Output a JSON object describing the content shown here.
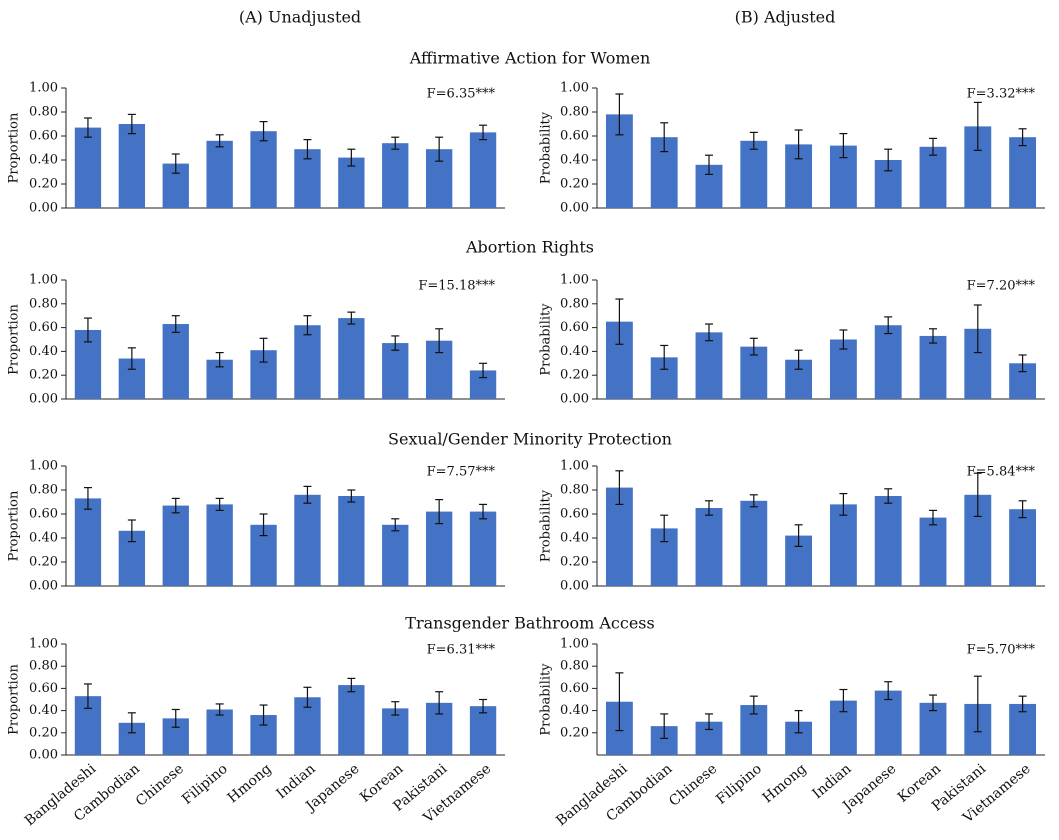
{
  "column_titles": [
    "(A) Unadjusted",
    "(B) Adjusted"
  ],
  "row_titles": [
    "Affirmative Action for Women",
    "Abortion Rights",
    "Sexual/Gender Minority Protection",
    "Transgender Bathroom Access"
  ],
  "chart_data": [
    {
      "type": "bar",
      "ylabel": "Proportion",
      "annotation": "F=6.35***",
      "color": "#4472c4",
      "categories": [
        null,
        null,
        null,
        null,
        null,
        null,
        null,
        null,
        null,
        null
      ],
      "values": [
        0.67,
        0.7,
        0.37,
        0.56,
        0.64,
        0.49,
        0.42,
        0.54,
        0.49,
        0.63
      ],
      "errors": [
        0.08,
        0.08,
        0.08,
        0.05,
        0.08,
        0.08,
        0.07,
        0.05,
        0.1,
        0.06
      ],
      "ylim": [
        0,
        1
      ],
      "yticks": [
        {
          "value": 0,
          "label": "0.00"
        },
        {
          "value": 0.2,
          "label": "0.20"
        },
        {
          "value": 0.4,
          "label": "0.40"
        },
        {
          "value": 0.6,
          "label": "0.60"
        },
        {
          "value": 0.8,
          "label": "0.80"
        },
        {
          "value": 1,
          "label": "1.00"
        }
      ]
    },
    {
      "type": "bar",
      "ylabel": "Probability",
      "annotation": "F=3.32***",
      "color": "#4472c4",
      "categories": [
        null,
        null,
        null,
        null,
        null,
        null,
        null,
        null,
        null,
        null
      ],
      "values": [
        0.78,
        0.59,
        0.36,
        0.56,
        0.53,
        0.52,
        0.4,
        0.51,
        0.68,
        0.59
      ],
      "errors": [
        0.17,
        0.12,
        0.08,
        0.07,
        0.12,
        0.1,
        0.09,
        0.07,
        0.2,
        0.07
      ],
      "ylim": [
        0,
        1
      ],
      "yticks": [
        {
          "value": 0,
          "label": "0.00"
        },
        {
          "value": 0.2,
          "label": "0.20"
        },
        {
          "value": 0.4,
          "label": "0.40"
        },
        {
          "value": 0.6,
          "label": "0.60"
        },
        {
          "value": 0.8,
          "label": "0.80"
        },
        {
          "value": 1,
          "label": "1.00"
        }
      ]
    },
    {
      "type": "bar",
      "ylabel": "Proportion",
      "annotation": "F=15.18***",
      "color": "#4472c4",
      "categories": [
        null,
        null,
        null,
        null,
        null,
        null,
        null,
        null,
        null,
        null
      ],
      "values": [
        0.58,
        0.34,
        0.63,
        0.33,
        0.41,
        0.62,
        0.68,
        0.47,
        0.49,
        0.24
      ],
      "errors": [
        0.1,
        0.09,
        0.07,
        0.06,
        0.1,
        0.08,
        0.05,
        0.06,
        0.1,
        0.06
      ],
      "ylim": [
        0,
        1
      ],
      "yticks": [
        {
          "value": 0,
          "label": "0.00"
        },
        {
          "value": 0.2,
          "label": "0.20"
        },
        {
          "value": 0.4,
          "label": "0.40"
        },
        {
          "value": 0.6,
          "label": "0.60"
        },
        {
          "value": 0.8,
          "label": "0.80"
        },
        {
          "value": 1,
          "label": "1.00"
        }
      ]
    },
    {
      "type": "bar",
      "ylabel": "Probability",
      "annotation": "F=7.20***",
      "color": "#4472c4",
      "categories": [
        null,
        null,
        null,
        null,
        null,
        null,
        null,
        null,
        null,
        null
      ],
      "values": [
        0.65,
        0.35,
        0.56,
        0.44,
        0.33,
        0.5,
        0.62,
        0.53,
        0.59,
        0.3
      ],
      "errors": [
        0.19,
        0.1,
        0.07,
        0.07,
        0.08,
        0.08,
        0.07,
        0.06,
        0.2,
        0.07
      ],
      "ylim": [
        0,
        1
      ],
      "yticks": [
        {
          "value": 0,
          "label": "0.00"
        },
        {
          "value": 0.2,
          "label": "0.20"
        },
        {
          "value": 0.4,
          "label": "0.40"
        },
        {
          "value": 0.6,
          "label": "0.60"
        },
        {
          "value": 0.8,
          "label": "0.80"
        },
        {
          "value": 1,
          "label": "1.00"
        }
      ]
    },
    {
      "type": "bar",
      "ylabel": "Proportion",
      "annotation": "F=7.57***",
      "color": "#4472c4",
      "categories": [
        null,
        null,
        null,
        null,
        null,
        null,
        null,
        null,
        null,
        null
      ],
      "values": [
        0.73,
        0.46,
        0.67,
        0.68,
        0.51,
        0.76,
        0.75,
        0.51,
        0.62,
        0.62
      ],
      "errors": [
        0.09,
        0.09,
        0.06,
        0.05,
        0.09,
        0.07,
        0.05,
        0.05,
        0.1,
        0.06
      ],
      "ylim": [
        0,
        1
      ],
      "yticks": [
        {
          "value": 0,
          "label": "0.00"
        },
        {
          "value": 0.2,
          "label": "0.20"
        },
        {
          "value": 0.4,
          "label": "0.40"
        },
        {
          "value": 0.6,
          "label": "0.60"
        },
        {
          "value": 0.8,
          "label": "0.80"
        },
        {
          "value": 1,
          "label": "1.00"
        }
      ]
    },
    {
      "type": "bar",
      "ylabel": "Probability",
      "annotation": "F=5.84***",
      "color": "#4472c4",
      "categories": [
        null,
        null,
        null,
        null,
        null,
        null,
        null,
        null,
        null,
        null
      ],
      "values": [
        0.82,
        0.48,
        0.65,
        0.71,
        0.42,
        0.68,
        0.75,
        0.57,
        0.76,
        0.64
      ],
      "errors": [
        0.14,
        0.11,
        0.06,
        0.05,
        0.09,
        0.09,
        0.06,
        0.06,
        0.18,
        0.07
      ],
      "ylim": [
        0,
        1
      ],
      "yticks": [
        {
          "value": 0,
          "label": "0.00"
        },
        {
          "value": 0.2,
          "label": "0.20"
        },
        {
          "value": 0.4,
          "label": "0.40"
        },
        {
          "value": 0.6,
          "label": "0.60"
        },
        {
          "value": 0.8,
          "label": "0.80"
        },
        {
          "value": 1,
          "label": "1.00"
        }
      ]
    },
    {
      "type": "bar",
      "ylabel": "Proportion",
      "annotation": "F=6.31***",
      "color": "#4472c4",
      "categories": [
        "Bangladeshi",
        "Cambodian",
        "Chinese",
        "Filipino",
        "Hmong",
        "Indian",
        "Japanese",
        "Korean",
        "Pakistani",
        "Vietnamese"
      ],
      "values": [
        0.53,
        0.29,
        0.33,
        0.41,
        0.36,
        0.52,
        0.63,
        0.42,
        0.47,
        0.44
      ],
      "errors": [
        0.11,
        0.09,
        0.08,
        0.05,
        0.09,
        0.09,
        0.06,
        0.06,
        0.1,
        0.06
      ],
      "ylim": [
        0,
        1
      ],
      "yticks": [
        {
          "value": 0,
          "label": "0.00"
        },
        {
          "value": 0.2,
          "label": "0.20"
        },
        {
          "value": 0.4,
          "label": "0.40"
        },
        {
          "value": 0.6,
          "label": "0.60"
        },
        {
          "value": 0.8,
          "label": "0.80"
        },
        {
          "value": 1,
          "label": "1.00"
        }
      ]
    },
    {
      "type": "bar",
      "ylabel": "Probability",
      "annotation": "F=5.70***",
      "color": "#4472c4",
      "categories": [
        "Bangladeshi",
        "Cambodian",
        "Chinese",
        "Filipino",
        "Hmong",
        "Indian",
        "Japanese",
        "Korean",
        "Pakistani",
        "Vietnamese"
      ],
      "values": [
        0.48,
        0.26,
        0.3,
        0.45,
        0.3,
        0.49,
        0.58,
        0.47,
        0.46,
        0.46
      ],
      "errors": [
        0.26,
        0.11,
        0.07,
        0.08,
        0.1,
        0.1,
        0.08,
        0.07,
        0.25,
        0.07
      ],
      "ylim": [
        0,
        1
      ],
      "yticks": [
        {
          "value": 0.2,
          "label": "0.20"
        },
        {
          "value": 0.4,
          "label": "0.40"
        },
        {
          "value": 0.6,
          "label": "0.60"
        },
        {
          "value": 0.8,
          "label": "0.80"
        },
        {
          "value": 1,
          "label": "1.00"
        }
      ]
    }
  ]
}
